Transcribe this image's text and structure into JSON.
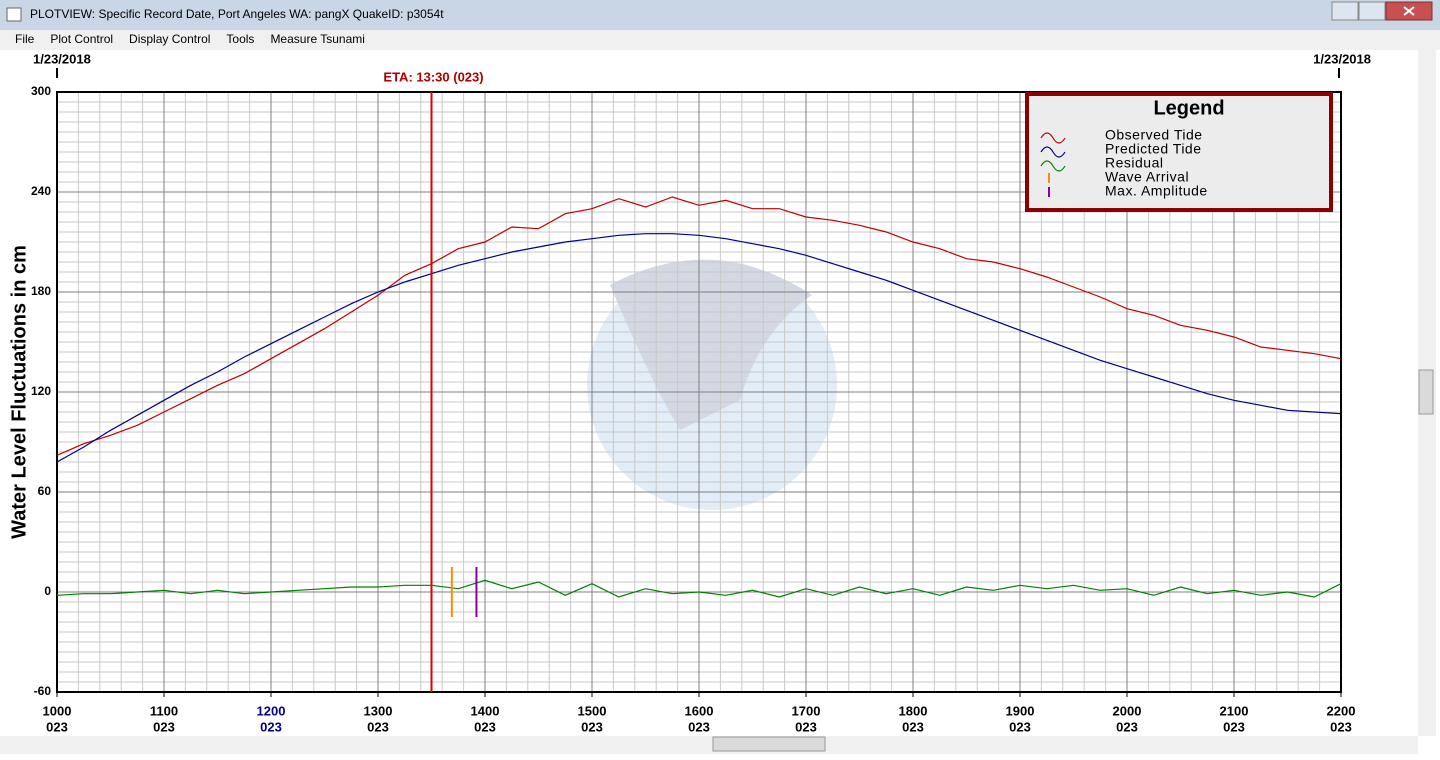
{
  "window": {
    "title": "PLOTVIEW: Specific Record Date, Port Angeles WA: pangX    QuakeID: p3054t",
    "menu": [
      "File",
      "Plot Control",
      "Display Control",
      "Tools",
      "Measure Tsunami"
    ]
  },
  "chart_data": {
    "type": "line",
    "ylabel": "Water Level Fluctuations in cm",
    "start_date": "1/23/2018",
    "end_date": "1/23/2018",
    "xlim": [
      10,
      22
    ],
    "ylim": [
      -60,
      300
    ],
    "yticks": [
      -60,
      0,
      60,
      120,
      180,
      240,
      300
    ],
    "xticks": [
      {
        "value": 10,
        "label": "1000",
        "day": "023"
      },
      {
        "value": 11,
        "label": "1100",
        "day": "023"
      },
      {
        "value": 12,
        "label": "1200",
        "day": "023",
        "color": "#00008b"
      },
      {
        "value": 13,
        "label": "1300",
        "day": "023"
      },
      {
        "value": 14,
        "label": "1400",
        "day": "023"
      },
      {
        "value": 15,
        "label": "1500",
        "day": "023"
      },
      {
        "value": 16,
        "label": "1600",
        "day": "023"
      },
      {
        "value": 17,
        "label": "1700",
        "day": "023"
      },
      {
        "value": 18,
        "label": "1800",
        "day": "023"
      },
      {
        "value": 19,
        "label": "1900",
        "day": "023"
      },
      {
        "value": 20,
        "label": "2000",
        "day": "023"
      },
      {
        "value": 21,
        "label": "2100",
        "day": "023"
      },
      {
        "value": 22,
        "label": "2200",
        "day": "023"
      }
    ],
    "grid": true,
    "x": [
      10,
      10.25,
      10.5,
      10.75,
      11,
      11.25,
      11.5,
      11.75,
      12,
      12.25,
      12.5,
      12.75,
      13,
      13.25,
      13.5,
      13.75,
      14,
      14.25,
      14.5,
      14.75,
      15,
      15.25,
      15.5,
      15.75,
      16,
      16.25,
      16.5,
      16.75,
      17,
      17.25,
      17.5,
      17.75,
      18,
      18.25,
      18.5,
      18.75,
      19,
      19.25,
      19.5,
      19.75,
      20,
      20.25,
      20.5,
      20.75,
      21,
      21.25,
      21.5,
      21.75,
      22
    ],
    "series": [
      {
        "name": "Observed Tide",
        "color": "#c00000",
        "values": [
          82,
          89,
          94,
          100,
          108,
          116,
          124,
          131,
          140,
          149,
          158,
          168,
          178,
          190,
          197,
          206,
          210,
          219,
          218,
          227,
          230,
          236,
          231,
          237,
          232,
          235,
          230,
          230,
          225,
          223,
          220,
          216,
          210,
          206,
          200,
          198,
          194,
          189,
          183,
          177,
          170,
          166,
          160,
          157,
          153,
          147,
          145,
          143,
          140
        ]
      },
      {
        "name": "Predicted Tide",
        "color": "#00008b",
        "values": [
          78,
          87,
          97,
          106,
          115,
          124,
          132,
          141,
          149,
          157,
          165,
          173,
          180,
          186,
          191,
          196,
          200,
          204,
          207,
          210,
          212,
          214,
          215,
          215,
          214,
          212,
          209,
          206,
          202,
          197,
          192,
          187,
          181,
          175,
          169,
          163,
          157,
          151,
          145,
          139,
          134,
          129,
          124,
          119,
          115,
          112,
          109,
          108,
          107
        ]
      },
      {
        "name": "Residual",
        "color": "#008000",
        "values": [
          -2,
          -1,
          -1,
          0,
          1,
          -1,
          1,
          -1,
          0,
          1,
          2,
          3,
          3,
          4,
          4,
          2,
          7,
          2,
          6,
          -2,
          5,
          -3,
          2,
          -1,
          0,
          -2,
          1,
          -3,
          2,
          -2,
          3,
          -1,
          2,
          -2,
          3,
          1,
          4,
          2,
          4,
          1,
          2,
          -2,
          3,
          -1,
          1,
          -2,
          0,
          -3,
          5
        ]
      }
    ],
    "markers": [
      {
        "name": "Wave Arrival",
        "color": "#ff8c00",
        "x": 13.69,
        "range": [
          -15,
          15
        ]
      },
      {
        "name": "Max. Amplitude",
        "color": "#8b00a0",
        "x": 13.92,
        "range": [
          -15,
          15
        ]
      }
    ],
    "eta": {
      "label": "ETA: 13:30 (023)",
      "x": 13.5,
      "color": "#e00000"
    },
    "legend": {
      "title": "Legend",
      "position": "upper right"
    }
  }
}
